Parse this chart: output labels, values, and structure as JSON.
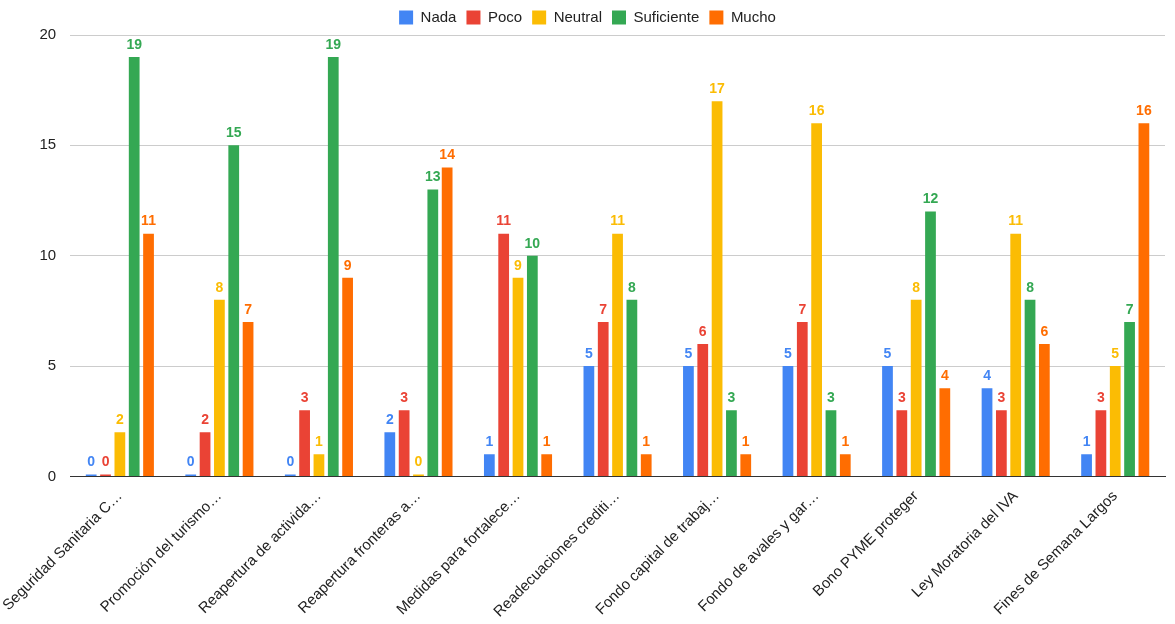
{
  "chart_data": {
    "type": "bar",
    "categories": [
      "Seguridad Sanitaria C…",
      "Promoción del turismo…",
      "Reapertura de activida…",
      "Reapertura fronteras a…",
      "Medidas para fortalece…",
      "Readecuaciones crediti…",
      "Fondo capital de trabaj…",
      "Fondo de avales y gar…",
      "Bono PYME proteger",
      "Ley Moratoria del IVA",
      "Fines de Semana Largos"
    ],
    "series": [
      {
        "name": "Nada",
        "color": "#4285f4",
        "values": [
          0,
          0,
          0,
          2,
          1,
          5,
          5,
          5,
          5,
          4,
          1
        ]
      },
      {
        "name": "Poco",
        "color": "#ea4335",
        "values": [
          0,
          2,
          3,
          3,
          11,
          7,
          6,
          7,
          3,
          3,
          3
        ]
      },
      {
        "name": "Neutral",
        "color": "#fbbc04",
        "values": [
          2,
          8,
          1,
          0,
          9,
          11,
          17,
          16,
          8,
          11,
          5
        ]
      },
      {
        "name": "Suficiente",
        "color": "#34a853",
        "values": [
          19,
          15,
          19,
          13,
          10,
          8,
          3,
          3,
          12,
          8,
          7
        ]
      },
      {
        "name": "Mucho",
        "color": "#ff6d01",
        "values": [
          11,
          7,
          9,
          14,
          1,
          1,
          1,
          1,
          4,
          6,
          16
        ]
      }
    ],
    "ylim": [
      0,
      20
    ],
    "yticks": [
      0,
      5,
      10,
      15,
      20
    ],
    "grid": "y",
    "legend": "top",
    "data_labels": true
  }
}
